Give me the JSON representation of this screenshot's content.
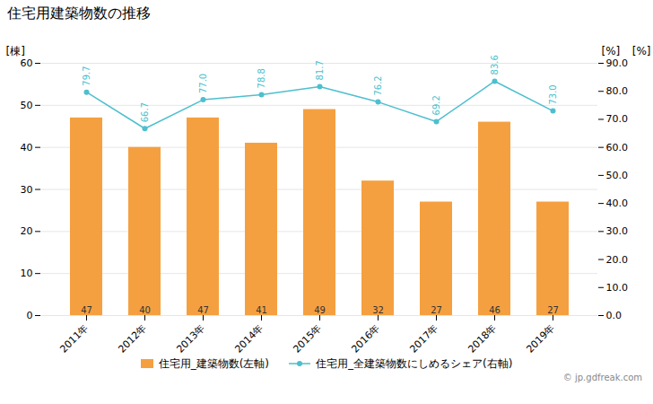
{
  "chart_data": {
    "type": "bar",
    "title": "住宅用建築物数の推移",
    "categories": [
      "2011年",
      "2012年",
      "2013年",
      "2014年",
      "2015年",
      "2016年",
      "2017年",
      "2018年",
      "2019年"
    ],
    "series": [
      {
        "name": "住宅用_建築物数(左軸)",
        "type": "bar",
        "color": "#F5A040",
        "values": [
          47,
          40,
          47,
          41,
          49,
          32,
          27,
          46,
          27
        ]
      },
      {
        "name": "住宅用_全建築物数にしめるシェア(右軸)",
        "type": "line",
        "color": "#4DBFCE",
        "marker": "circle",
        "axis": "y2",
        "values": [
          79.7,
          66.7,
          77.0,
          78.8,
          81.7,
          76.2,
          69.2,
          83.6,
          73.0
        ],
        "value_labels": [
          "79.7",
          "66.7",
          "77.0",
          "78.8",
          "81.7",
          "76.2",
          "69.2",
          "83.6",
          "73.0"
        ]
      }
    ],
    "ylabel": "[棟]",
    "y2label": "[%]",
    "annotations": [
      "[%]",
      "© jp.gdfreak.com"
    ],
    "ylim": [
      0,
      60
    ],
    "yticks": [
      0,
      10,
      20,
      30,
      40,
      50,
      60
    ],
    "y2lim": [
      0,
      90
    ],
    "y2ticks": [
      {
        "value": 0,
        "label": "0.0"
      },
      {
        "value": 10,
        "label": "10.0"
      },
      {
        "value": 20,
        "label": "20.0"
      },
      {
        "value": 30,
        "label": "30.0"
      },
      {
        "value": 40,
        "label": "40.0"
      },
      {
        "value": 50,
        "label": "50.0"
      },
      {
        "value": 60,
        "label": "60.0"
      },
      {
        "value": 70,
        "label": "70.0"
      },
      {
        "value": 80,
        "label": "80.0"
      },
      {
        "value": 90,
        "label": "90.0"
      }
    ],
    "grid": true,
    "legend": "bottom",
    "data_labels": true
  }
}
